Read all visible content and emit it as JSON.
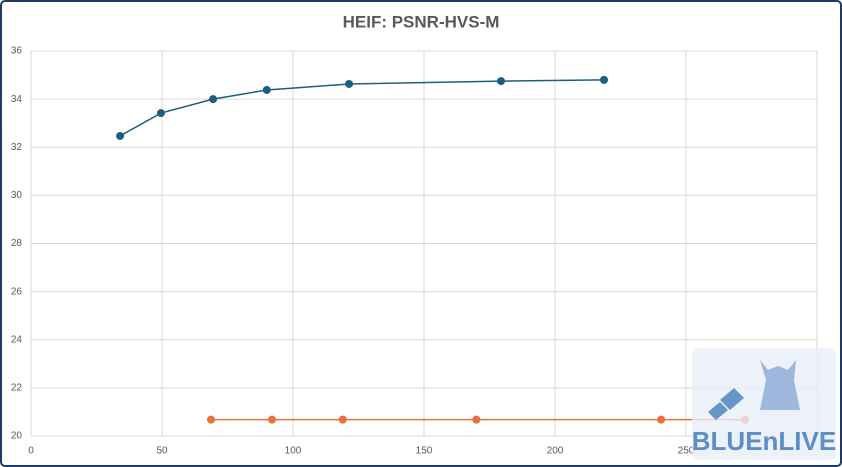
{
  "chart_data": {
    "type": "line",
    "title": "HEIF: PSNR-HVS-M",
    "series": [
      {
        "color": "#1b5f80",
        "x": [
          34,
          49.6,
          69.5,
          90,
          121.4,
          179.4,
          218.7
        ],
        "values": [
          32.47,
          33.42,
          34.0,
          34.38,
          34.63,
          34.75,
          34.8
        ]
      },
      {
        "color": "#e8703a",
        "x": [
          68.7,
          92,
          119,
          170,
          240.5,
          272.5
        ],
        "values": [
          20.68,
          20.68,
          20.68,
          20.68,
          20.68,
          20.68
        ]
      }
    ],
    "xlim": [
      0,
      300
    ],
    "xticks": [
      0,
      50,
      100,
      150,
      200,
      250
    ],
    "ylim": [
      20,
      36
    ],
    "yticks": [
      20,
      22,
      24,
      26,
      28,
      30,
      32,
      34,
      36
    ],
    "grid": true,
    "watermark": "BLUEnLIVE"
  }
}
